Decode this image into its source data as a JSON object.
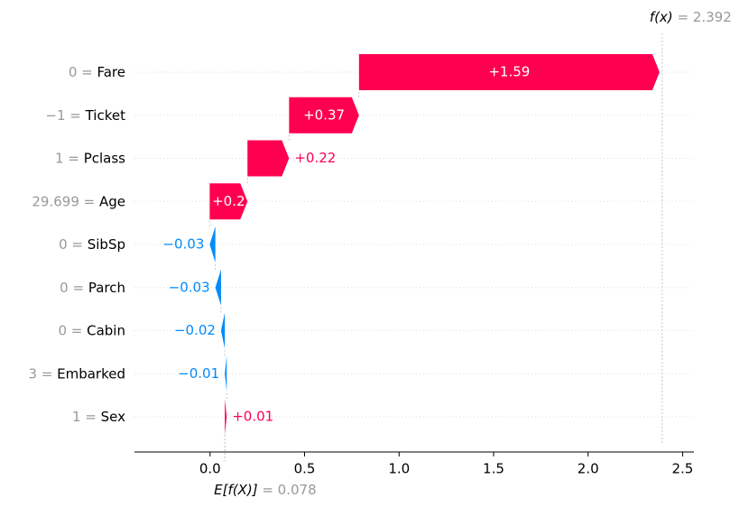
{
  "chart_data": {
    "type": "waterfall",
    "categories": [
      "Fare",
      "Ticket",
      "Pclass",
      "Age",
      "SibSp",
      "Parch",
      "Cabin",
      "Embarked",
      "Sex"
    ],
    "feature_labels": [
      "0 =",
      "−1 =",
      "1 =",
      "29.699 =",
      "0 =",
      "0 =",
      "0 =",
      "3 =",
      "1 ="
    ],
    "values": [
      1.59,
      0.37,
      0.22,
      0.2,
      -0.03,
      -0.03,
      -0.02,
      -0.01,
      0.01
    ],
    "value_labels": [
      "+1.59",
      "+0.37",
      "+0.22",
      "+0.2",
      "−0.03",
      "−0.03",
      "−0.02",
      "−0.01",
      "+0.01"
    ],
    "base_value": 0.078,
    "base_label": "E[f(X)]",
    "base_value_label": "= 0.078",
    "output_value": 2.392,
    "output_label": "f(x)",
    "output_value_label": "= 2.392",
    "positive_color": "#ff0051",
    "negative_color": "#008bfb",
    "xlim": [
      -0.4,
      2.56
    ],
    "xticks": [
      {
        "value": 0,
        "label": "0.0"
      },
      0.5,
      {
        "value": 1,
        "label": "1.0"
      },
      1.5,
      {
        "value": 2,
        "label": "2.0"
      },
      2.5
    ]
  }
}
